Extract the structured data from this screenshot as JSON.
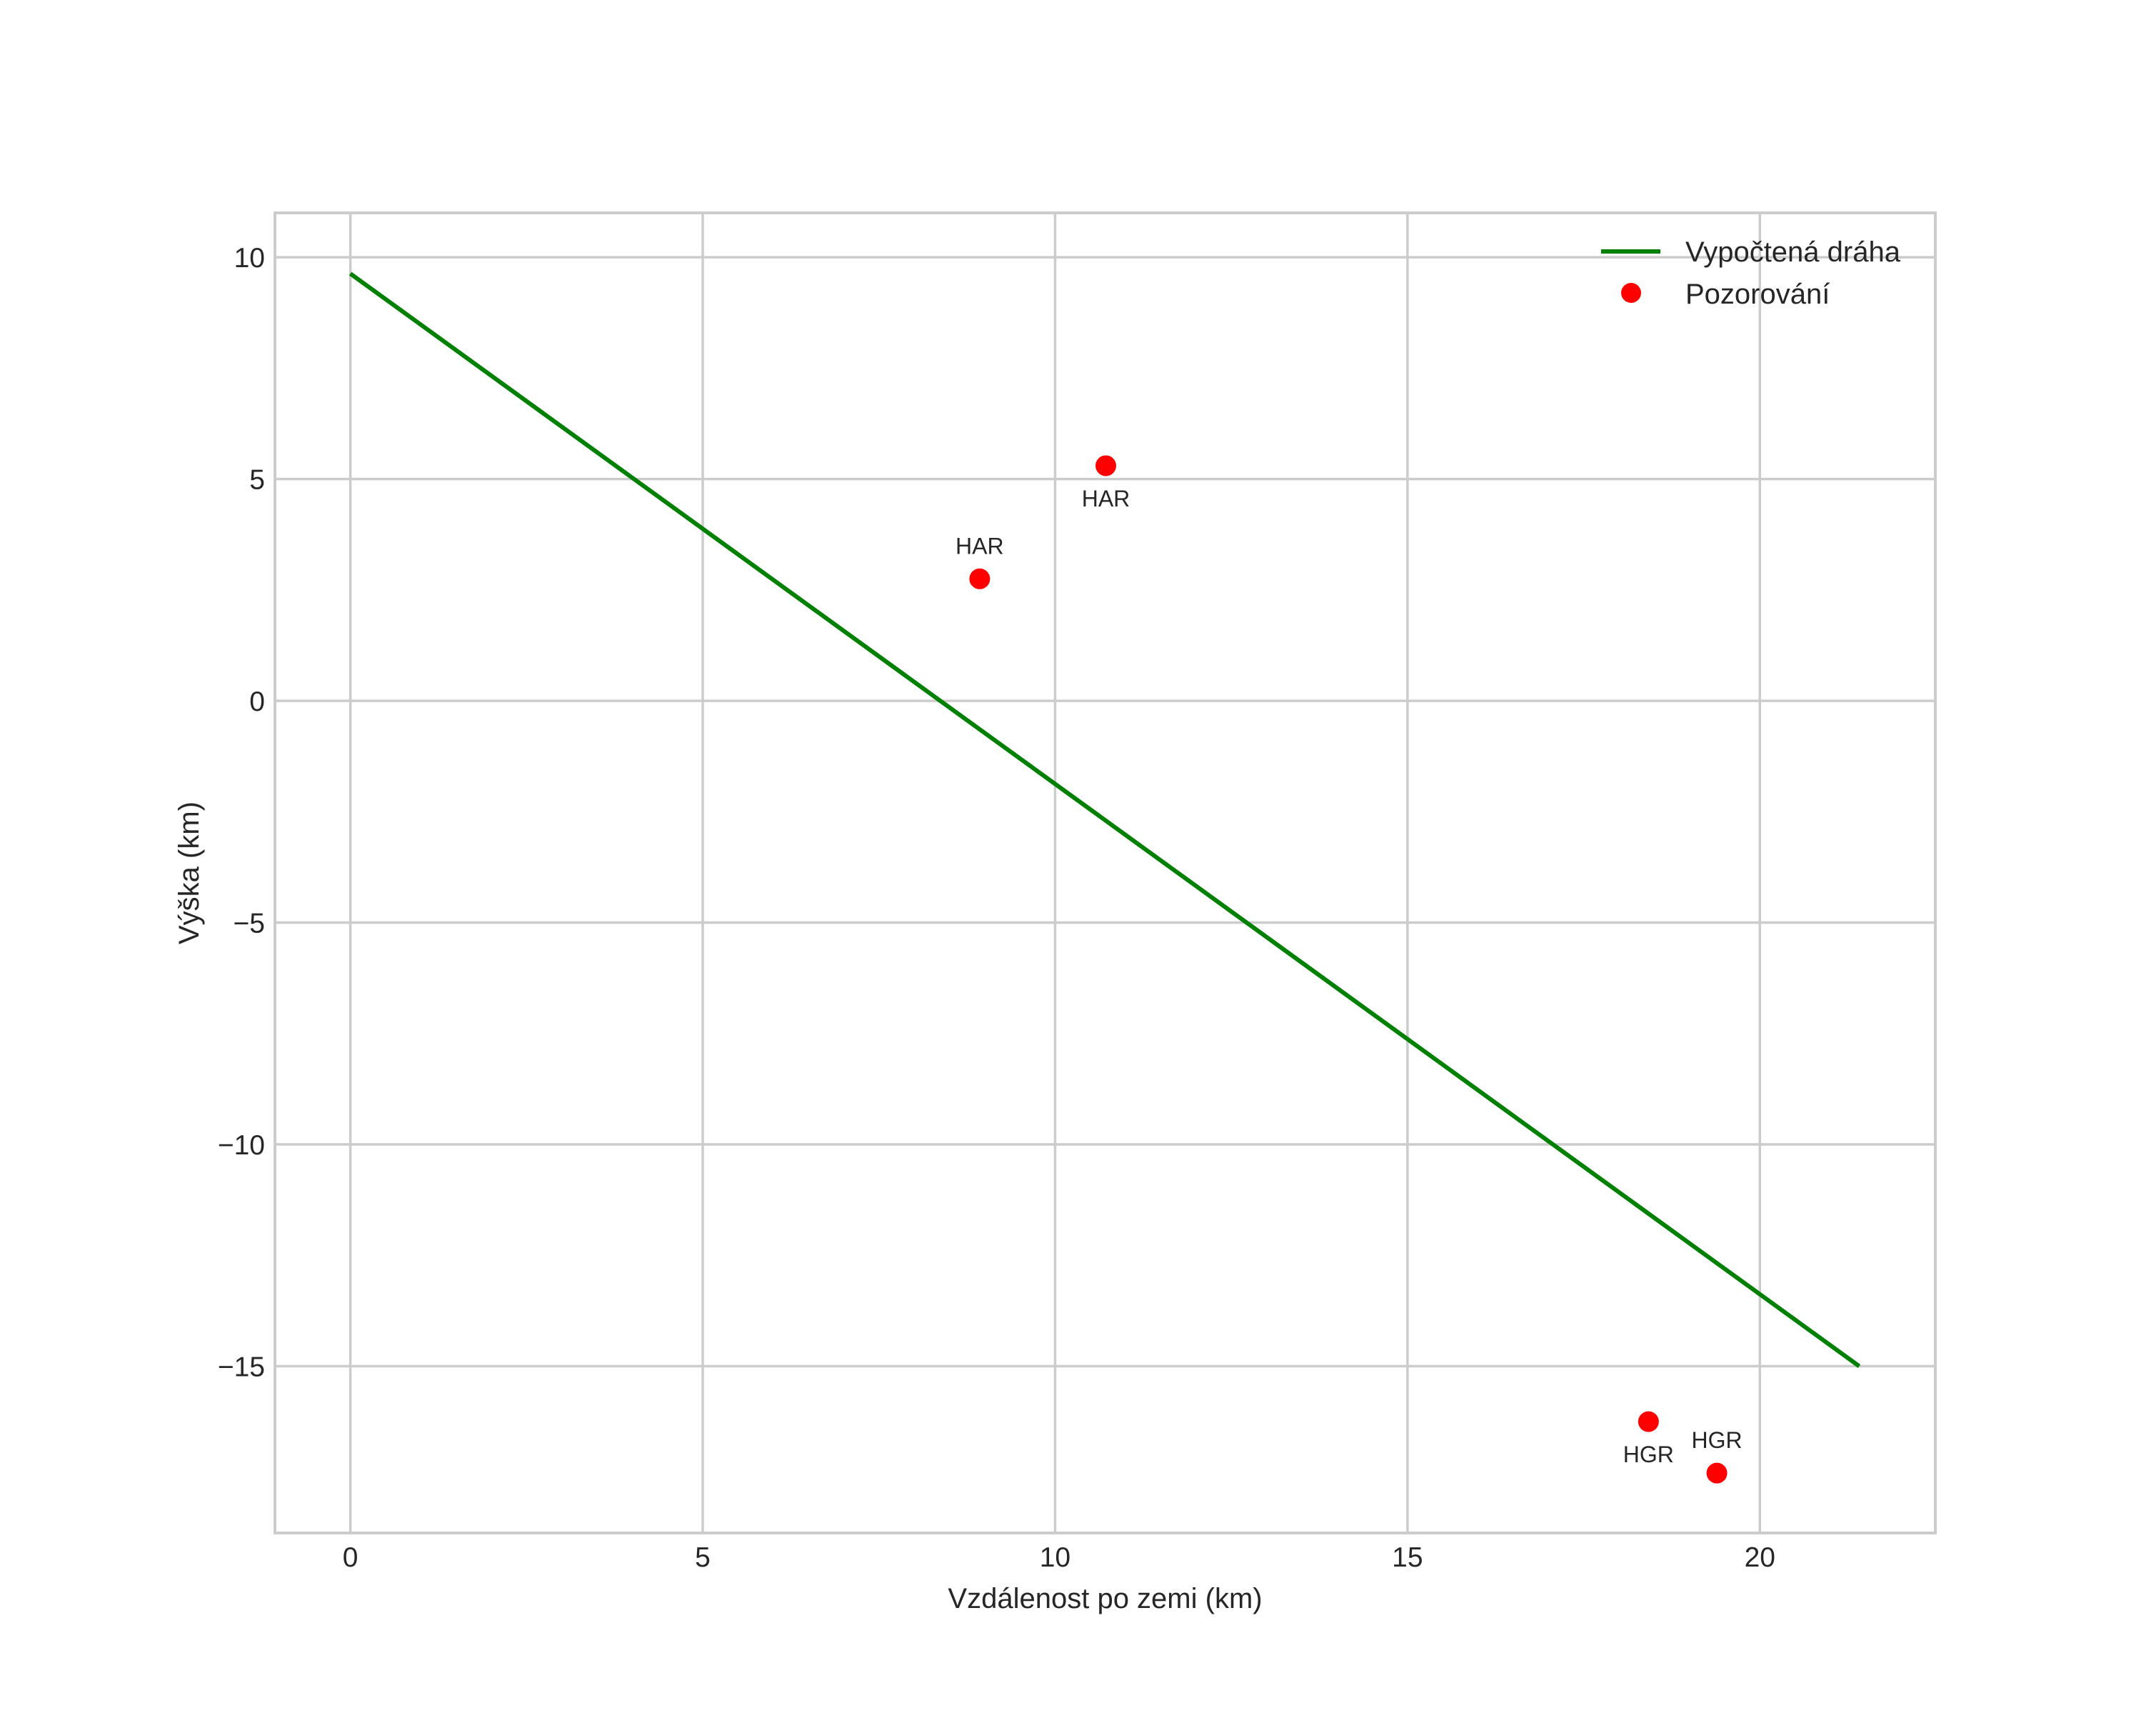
{
  "chart_data": {
    "type": "line",
    "title": "",
    "xlabel": "Vzdálenost po zemi (km)",
    "ylabel": "Výška (km)",
    "xlim": [
      -1.07,
      22.49
    ],
    "ylim": [
      -18.76,
      11.0
    ],
    "grid": true,
    "legend_position": "upper right",
    "xticks": [
      0,
      5,
      10,
      15,
      20
    ],
    "xtick_labels": [
      "0",
      "5",
      "10",
      "15",
      "20"
    ],
    "yticks": [
      10,
      5,
      0,
      -5,
      -10,
      -15
    ],
    "ytick_labels": [
      "10",
      "5",
      "0",
      "−5",
      "−10",
      "−15"
    ],
    "series": [
      {
        "name": "Vypočtená dráha",
        "kind": "line",
        "color": "#008000",
        "x": [
          0.0,
          21.41
        ],
        "y": [
          9.63,
          -15.0
        ]
      },
      {
        "name": "Pozorování",
        "kind": "scatter",
        "color": "#ff0000",
        "points": [
          {
            "x": 8.93,
            "y": 2.75,
            "label": "HAR",
            "label_pos": "above"
          },
          {
            "x": 10.72,
            "y": 5.3,
            "label": "HAR",
            "label_pos": "below"
          },
          {
            "x": 18.42,
            "y": -16.25,
            "label": "HGR",
            "label_pos": "below"
          },
          {
            "x": 19.39,
            "y": -17.41,
            "label": "HGR",
            "label_pos": "above"
          }
        ]
      }
    ]
  },
  "legend": {
    "items": [
      {
        "label": "Vypočtená dráha",
        "color": "#008000",
        "kind": "line"
      },
      {
        "label": "Pozorování",
        "color": "#ff0000",
        "kind": "marker"
      }
    ]
  },
  "colors": {
    "grid": "#cccccc",
    "spine": "#cccccc",
    "text": "#262626",
    "background": "#ffffff"
  }
}
